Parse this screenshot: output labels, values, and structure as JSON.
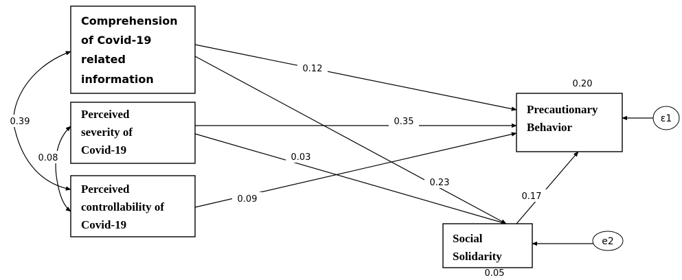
{
  "nodes": {
    "comprehension": [
      "Comprehension",
      "of Covid-19",
      "related",
      "information"
    ],
    "severity": [
      "Perceived",
      "severity of",
      "Covid-19"
    ],
    "controllability": [
      "Perceived",
      "controllability of",
      "Covid-19"
    ],
    "precautionary": [
      "Precautionary",
      "Behavior"
    ],
    "solidarity": [
      "Social",
      "Solidarity"
    ]
  },
  "errors": {
    "e1": "ε1",
    "e2": "e2"
  },
  "coefficients": {
    "comp_to_prec": "0.12",
    "sev_to_prec": "0.35",
    "ctrl_to_prec": "0.09",
    "sev_to_soc": "0.03",
    "comp_to_soc": "0.23",
    "soc_to_prec": "0.17",
    "cov_comp_ctrl": "0.39",
    "cov_sev_ctrl": "0.08",
    "r2_prec": "0.20",
    "r2_soc": "0.05"
  }
}
